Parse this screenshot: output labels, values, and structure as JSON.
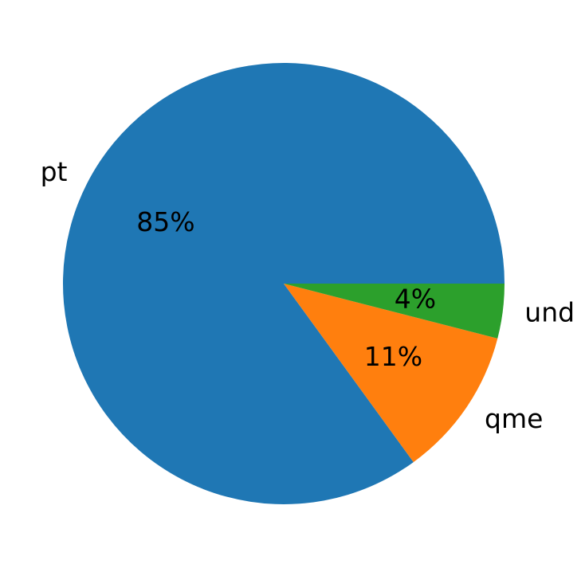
{
  "chart_data": {
    "type": "pie",
    "categories": [
      "pt",
      "qme",
      "und"
    ],
    "values": [
      85,
      11,
      4
    ],
    "value_labels": [
      "85%",
      "11%",
      "4%"
    ],
    "colors": [
      "#1f77b4",
      "#ff7f0e",
      "#2ca02c"
    ]
  }
}
